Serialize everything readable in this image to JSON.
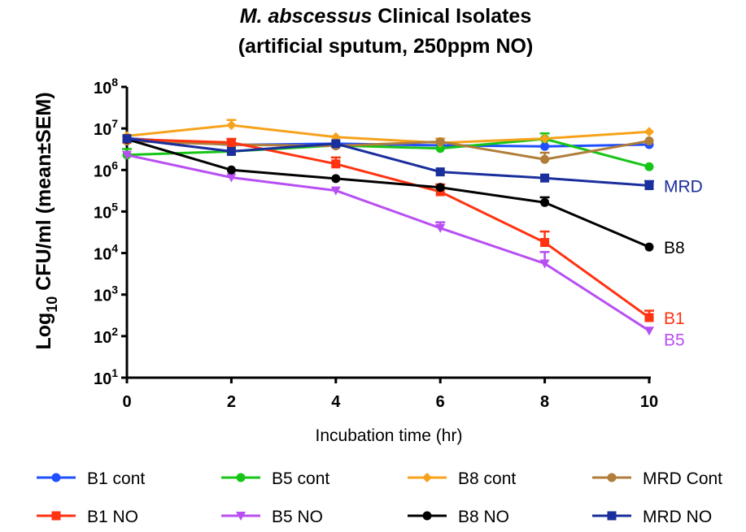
{
  "chart_data": {
    "type": "line",
    "title_line1_italic": "M. abscessus",
    "title_line1_rest": " Clinical Isolates",
    "title_line2": "(artificial sputum, 250ppm NO)",
    "xlabel": "Incubation time (hr)",
    "ylabel_prefix": "Log",
    "ylabel_sub": "10",
    "ylabel_rest": " CFU/ml (mean±SEM)",
    "yscale": "log",
    "ylim": [
      10,
      100000000
    ],
    "xlim": [
      0,
      10
    ],
    "x_ticks": [
      "0",
      "2",
      "4",
      "6",
      "8",
      "10"
    ],
    "y_ticks": [
      {
        "base": "10",
        "exp": "8",
        "value": 100000000
      },
      {
        "base": "10",
        "exp": "7",
        "value": 10000000
      },
      {
        "base": "10",
        "exp": "6",
        "value": 1000000
      },
      {
        "base": "10",
        "exp": "5",
        "value": 100000
      },
      {
        "base": "10",
        "exp": "4",
        "value": 10000
      },
      {
        "base": "10",
        "exp": "3",
        "value": 1000
      },
      {
        "base": "10",
        "exp": "2",
        "value": 100
      },
      {
        "base": "10",
        "exp": "1",
        "value": 10
      }
    ],
    "x": [
      0,
      2,
      4,
      6,
      8,
      10
    ],
    "series": [
      {
        "name": "B1 cont",
        "color": "#1f4fff",
        "marker": "circle",
        "values": [
          5800000,
          4000000,
          4300000,
          3900000,
          3700000,
          4100000
        ],
        "err": [
          0,
          0,
          0,
          0,
          0,
          0
        ]
      },
      {
        "name": "B5 cont",
        "color": "#17c517",
        "marker": "circle",
        "values": [
          2300000,
          2800000,
          3900000,
          3300000,
          5600000,
          1200000
        ],
        "err": [
          900000,
          0,
          0,
          0,
          2000000,
          0
        ]
      },
      {
        "name": "B8 cont",
        "color": "#f7a21b",
        "marker": "diamond",
        "values": [
          6600000,
          12000000,
          6200000,
          4500000,
          5700000,
          8300000
        ],
        "err": [
          0,
          4000000,
          0,
          1200000,
          0,
          0
        ]
      },
      {
        "name": "MRD Cont",
        "color": "#b07d3a",
        "marker": "circle",
        "values": [
          5000000,
          4100000,
          3800000,
          4800000,
          1800000,
          5000000
        ],
        "err": [
          0,
          0,
          0,
          0,
          800000,
          0
        ]
      },
      {
        "name": "B1 NO",
        "color": "#ff3311",
        "marker": "square",
        "values": [
          5500000,
          4600000,
          1400000,
          300000,
          18000,
          280
        ],
        "err": [
          0,
          1000000,
          600000,
          150000,
          15000,
          130
        ]
      },
      {
        "name": "B5 NO",
        "color": "#b84ff2",
        "marker": "triangle-down",
        "values": [
          2300000,
          660000,
          320000,
          40000,
          5600,
          135
        ],
        "err": [
          0,
          0,
          0,
          15000,
          5000,
          0
        ]
      },
      {
        "name": "B8 NO",
        "color": "#000000",
        "marker": "circle",
        "values": [
          5500000,
          1000000,
          620000,
          380000,
          165000,
          14000
        ],
        "err": [
          0,
          0,
          0,
          0,
          55000,
          0
        ]
      },
      {
        "name": "MRD NO",
        "color": "#1a2e9c",
        "marker": "square",
        "values": [
          5700000,
          2800000,
          4300000,
          900000,
          640000,
          420000
        ],
        "err": [
          0,
          0,
          0,
          0,
          0,
          120000
        ]
      }
    ],
    "end_labels": [
      {
        "text": "MRD",
        "color": "#1a2e9c",
        "value": 420000
      },
      {
        "text": "B8",
        "color": "#000000",
        "value": 14000
      },
      {
        "text": "B1",
        "color": "#ff3311",
        "value": 280
      },
      {
        "text": "B5",
        "color": "#b84ff2",
        "value": 85
      }
    ],
    "legend_position": "bottom",
    "grid": false
  }
}
